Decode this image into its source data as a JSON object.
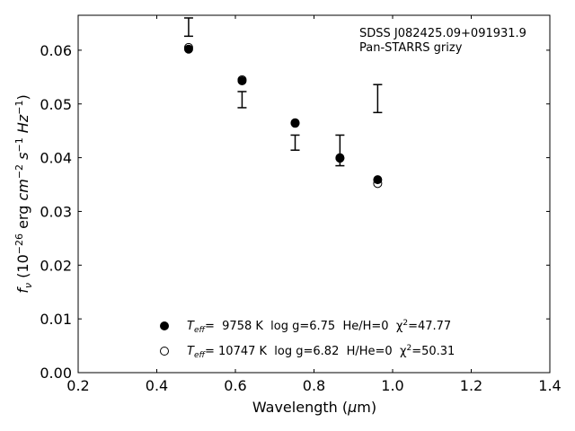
{
  "chart_data": {
    "type": "scatter",
    "xlabel": "Wavelength (μm)",
    "ylabel": "f_ν (10^-26 erg cm^-2 s^-1 Hz^-1)",
    "xlim": [
      0.2,
      1.4
    ],
    "ylim": [
      0.0,
      0.0665
    ],
    "xticks": [
      0.2,
      0.4,
      0.6,
      0.8,
      1.0,
      1.2,
      1.4
    ],
    "xtick_labels": [
      "0.2",
      "0.4",
      "0.6",
      "0.8",
      "1.0",
      "1.2",
      "1.4"
    ],
    "yticks": [
      0.0,
      0.01,
      0.02,
      0.03,
      0.04,
      0.05,
      0.06
    ],
    "ytick_labels": [
      "0.00",
      "0.01",
      "0.02",
      "0.03",
      "0.04",
      "0.05",
      "0.06"
    ],
    "grid": false,
    "annotation": [
      "SDSS J082425.09+091931.9",
      "Pan-STARRS grizy"
    ],
    "annotation_position": "top-right",
    "legend_position": "bottom-center",
    "observed": {
      "x": [
        0.481,
        0.617,
        0.752,
        0.866,
        0.962
      ],
      "y": [
        0.0643,
        0.0508,
        0.0428,
        0.0413,
        0.051
      ],
      "yerr_low": [
        0.0017,
        0.0015,
        0.0014,
        0.0028,
        0.0026
      ],
      "yerr_high": [
        0.0017,
        0.0015,
        0.0014,
        0.0029,
        0.0026
      ]
    },
    "series": [
      {
        "name": "T_eff= 9758 K log g=6.75 He/H=0 χ²=47.77",
        "marker": "filled-circle",
        "x": [
          0.481,
          0.617,
          0.752,
          0.866,
          0.962
        ],
        "y": [
          0.0602,
          0.0543,
          0.0464,
          0.0399,
          0.0359
        ]
      },
      {
        "name": "T_eff= 10747 K log g=6.82 H/He=0 χ²=50.31",
        "marker": "open-circle",
        "x": [
          0.481,
          0.617,
          0.752,
          0.866,
          0.962
        ],
        "y": [
          0.0605,
          0.0545,
          0.0465,
          0.04,
          0.0352
        ]
      }
    ],
    "legend": [
      {
        "marker": "filled-circle",
        "teff_pre": "T",
        "teff_sub": "eff",
        "rest": "=  9758 K  log g=6.75  He/H=0  χ",
        "sup": "2",
        "tail": "=47.77"
      },
      {
        "marker": "open-circle",
        "teff_pre": "T",
        "teff_sub": "eff",
        "rest": "= 10747 K  log g=6.82  H/He=0  χ",
        "sup": "2",
        "tail": "=50.31"
      }
    ]
  }
}
